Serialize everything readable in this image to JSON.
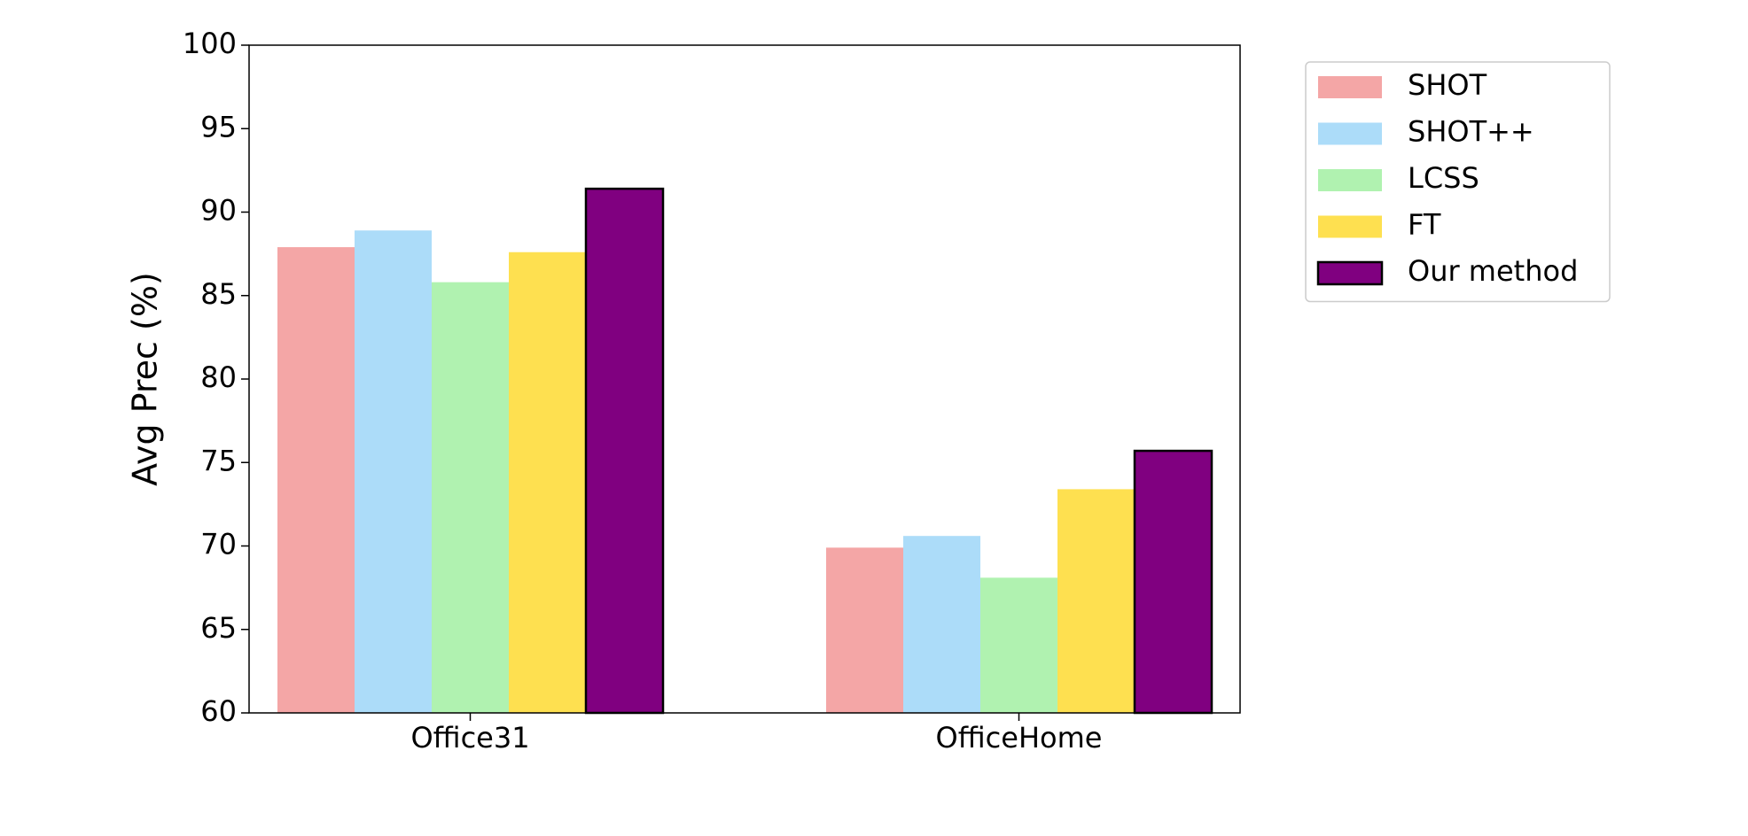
{
  "chart_data": {
    "type": "bar",
    "y_label": "Avg Prec (%)",
    "categories": [
      "Office31",
      "OfficeHome"
    ],
    "series": [
      {
        "name": "SHOT",
        "color": "#f4a6a6",
        "values": [
          87.9,
          69.9
        ]
      },
      {
        "name": "SHOT++",
        "color": "#acdcf9",
        "values": [
          88.9,
          70.6
        ]
      },
      {
        "name": "LCSS",
        "color": "#b0f2b0",
        "values": [
          85.8,
          68.1
        ]
      },
      {
        "name": "FT",
        "color": "#fee050",
        "values": [
          87.6,
          73.4
        ]
      },
      {
        "name": "Our method",
        "color": "#800080",
        "edgecolor": "#000000",
        "values": [
          91.4,
          75.7
        ]
      }
    ],
    "ylim": [
      60,
      100
    ],
    "yticks": [
      60,
      65,
      70,
      75,
      80,
      85,
      90,
      95,
      100
    ],
    "legend": "outside-upper-right"
  }
}
